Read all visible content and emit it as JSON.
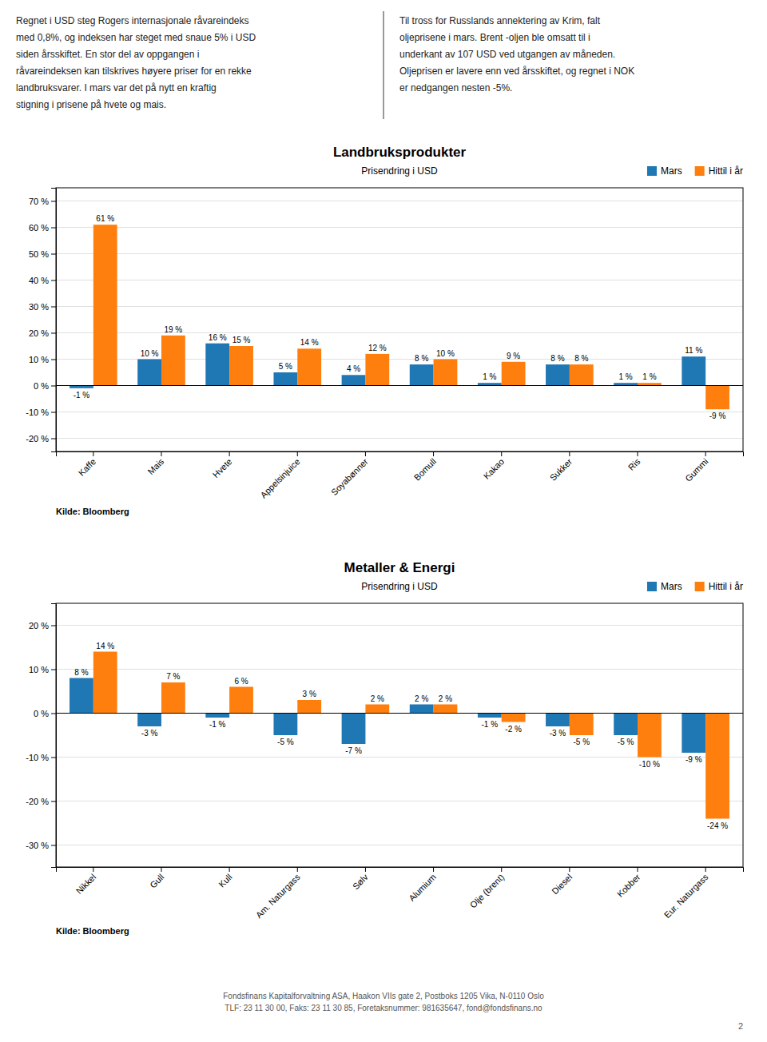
{
  "text_left": [
    "Regnet i USD steg Rogers internasjonale råvareindeks",
    "med 0,8%, og indeksen har steget med snaue 5% i USD",
    "siden årsskiftet. En stor del av oppgangen i",
    "råvareindeksen kan tilskrives høyere priser for en rekke",
    "landbruksvarer. I mars var det på nytt en kraftig",
    "stigning i prisene på hvete og mais."
  ],
  "text_right": [
    "Til tross for Russlands annektering av Krim, falt",
    "oljeprisene i mars. Brent -oljen ble omsatt til i",
    "underkant av 107 USD ved utgangen av måneden.",
    "Oljeprisen er lavere enn ved årsskiftet, og regnet i NOK",
    "er nedgangen nesten -5%."
  ],
  "chart_data": [
    {
      "type": "bar",
      "title": "Landbruksprodukter",
      "subtitle": "Prisendring i USD",
      "categories": [
        "Kaffe",
        "Mais",
        "Hvete",
        "Appelsinjuice",
        "Soyabønner",
        "Bomull",
        "Kakao",
        "Sukker",
        "Ris",
        "Gummi"
      ],
      "series": [
        {
          "name": "Mars",
          "values": [
            -1,
            10,
            16,
            5,
            4,
            8,
            1,
            8,
            1,
            11
          ],
          "value_labels": [
            "-1 %",
            "10 %",
            "16 %",
            "5 %",
            "4 %",
            "8 %",
            "1 %",
            "8 %",
            "1 %",
            "11 %"
          ]
        },
        {
          "name": "Hittil i år",
          "values": [
            61,
            19,
            15,
            14,
            12,
            10,
            9,
            8,
            1,
            -9
          ],
          "value_labels": [
            "61 %",
            "19 %",
            "15 %",
            "14 %",
            "12 %",
            "10 %",
            "9 %",
            "8 %",
            "1 %",
            "-9 %"
          ]
        }
      ],
      "ylim": [
        -25,
        75
      ],
      "yticks": [
        {
          "value": -20,
          "label": "-20 %"
        },
        {
          "value": -10,
          "label": "-10 %"
        },
        {
          "value": 0,
          "label": "0 %"
        },
        {
          "value": 10,
          "label": "10 %"
        },
        {
          "value": 20,
          "label": "20 %"
        },
        {
          "value": 30,
          "label": "30 %"
        },
        {
          "value": 40,
          "label": "40 %"
        },
        {
          "value": 50,
          "label": "50 %"
        },
        {
          "value": 60,
          "label": "60 %"
        },
        {
          "value": 70,
          "label": "70 %"
        }
      ],
      "grid": true,
      "legend": "top-right",
      "data_labels": true,
      "annotations": [
        "Kilde: Bloomberg"
      ]
    },
    {
      "type": "bar",
      "title": "Metaller & Energi",
      "subtitle": "Prisendring i USD",
      "categories": [
        "Nikkel",
        "Gull",
        "Kull",
        "Am. Naturgass",
        "Sølv",
        "Alumium",
        "Olje (brent)",
        "Diesel",
        "Kobber",
        "Eur. Naturgass"
      ],
      "series": [
        {
          "name": "Mars",
          "values": [
            8,
            -3,
            -1,
            -5,
            -7,
            2,
            -1,
            -3,
            -5,
            -9
          ],
          "value_labels": [
            "8 %",
            "-3 %",
            "-1 %",
            "-5 %",
            "-7 %",
            "2 %",
            "-1 %",
            "-3 %",
            "-5 %",
            "-9 %"
          ]
        },
        {
          "name": "Hittil i år",
          "values": [
            14,
            7,
            6,
            3,
            2,
            2,
            -2,
            -5,
            -10,
            -24
          ],
          "value_labels": [
            "14 %",
            "7 %",
            "6 %",
            "3 %",
            "2 %",
            "2 %",
            "-2 %",
            "-5 %",
            "-10 %",
            "-24 %"
          ]
        }
      ],
      "ylim": [
        -35,
        25
      ],
      "yticks": [
        {
          "value": -30,
          "label": "-30 %"
        },
        {
          "value": -20,
          "label": "-20 %"
        },
        {
          "value": -10,
          "label": "-10 %"
        },
        {
          "value": 0,
          "label": "0 %"
        },
        {
          "value": 10,
          "label": "10 %"
        },
        {
          "value": 20,
          "label": "20 %"
        }
      ],
      "grid": true,
      "legend": "top-right",
      "data_labels": true,
      "annotations": [
        "Kilde: Bloomberg"
      ]
    }
  ],
  "footer": [
    "Fondsfinans Kapitalforvaltning ASA, Haakon VIIs gate 2, Postboks 1205 Vika, N-0110 Oslo",
    "TLF: 23 11 30 00, Faks: 23 11 30 85, Foretaksnummer: 981635647, fond@fondsfinans.no"
  ],
  "page_number": "2"
}
